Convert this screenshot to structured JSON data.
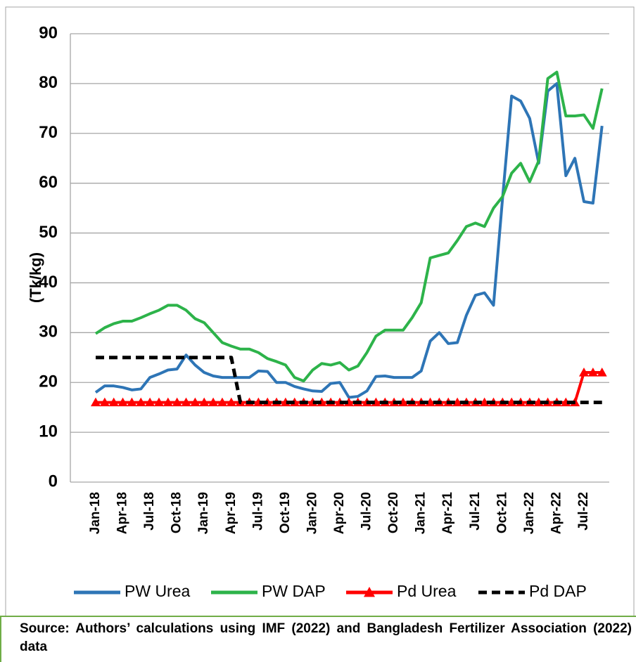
{
  "chart_data": {
    "type": "line",
    "y_label": "(Tk/kg)",
    "categories": [
      "Jan-18",
      null,
      null,
      "Apr-18",
      null,
      null,
      "Jul-18",
      null,
      null,
      "Oct-18",
      null,
      null,
      "Jan-19",
      null,
      null,
      "Apr-19",
      null,
      null,
      "Jul-19",
      null,
      null,
      "Oct-19",
      null,
      null,
      "Jan-20",
      null,
      null,
      "Apr-20",
      null,
      null,
      "Jul-20",
      null,
      null,
      "Oct-20",
      null,
      null,
      "Jan-21",
      null,
      null,
      "Apr-21",
      null,
      null,
      "Jul-21",
      null,
      null,
      "Oct-21",
      null,
      null,
      "Jan-22",
      null,
      null,
      "Apr-22",
      null,
      null,
      "Jul-22",
      null,
      null
    ],
    "series": [
      {
        "name": "PW Urea",
        "color": "#2e75b6",
        "dash": false,
        "marker": null,
        "values": [
          18,
          19.3,
          19.3,
          19,
          18.5,
          18.7,
          21,
          21.7,
          22.5,
          22.7,
          25.5,
          23.5,
          22,
          21.3,
          21,
          21,
          21,
          21,
          22.3,
          22.2,
          20,
          20,
          19.2,
          18.7,
          18.3,
          18.2,
          19.8,
          20,
          17,
          17.2,
          18.3,
          21.2,
          21.3,
          21,
          21,
          21,
          22.3,
          28.3,
          30,
          27.8,
          28,
          33.5,
          37.5,
          38,
          35.5,
          57,
          77.5,
          76.5,
          73,
          64,
          78.5,
          80,
          61.5,
          65,
          56.3,
          56,
          71.5
        ]
      },
      {
        "name": "PW DAP",
        "color": "#2db34a",
        "dash": false,
        "marker": null,
        "values": [
          29.8,
          31,
          31.8,
          32.3,
          32.3,
          33,
          33.8,
          34.5,
          35.5,
          35.5,
          34.5,
          32.8,
          32,
          30,
          28,
          27.3,
          26.7,
          26.7,
          26,
          24.8,
          24.2,
          23.5,
          21,
          20.3,
          22.5,
          23.8,
          23.5,
          24,
          22.5,
          23.3,
          26,
          29.3,
          30.5,
          30.5,
          30.5,
          33,
          36,
          45,
          45.5,
          46,
          48.5,
          51.3,
          52,
          51.3,
          55,
          57.3,
          62,
          64,
          60.3,
          64.5,
          81,
          82.3,
          73.5,
          73.5,
          73.7,
          71,
          79
        ]
      },
      {
        "name": "Pd Urea",
        "color": "#ff0000",
        "dash": false,
        "marker": "triangle",
        "values": [
          16,
          16,
          16,
          16,
          16,
          16,
          16,
          16,
          16,
          16,
          16,
          16,
          16,
          16,
          16,
          16,
          16,
          16,
          16,
          16,
          16,
          16,
          16,
          16,
          16,
          16,
          16,
          16,
          16,
          16,
          16,
          16,
          16,
          16,
          16,
          16,
          16,
          16,
          16,
          16,
          16,
          16,
          16,
          16,
          16,
          16,
          16,
          16,
          16,
          16,
          16,
          16,
          16,
          16,
          22,
          22,
          22
        ]
      },
      {
        "name": "Pd DAP",
        "color": "#000000",
        "dash": true,
        "marker": null,
        "values": [
          25,
          25,
          25,
          25,
          25,
          25,
          25,
          25,
          25,
          25,
          25,
          25,
          25,
          25,
          25,
          25,
          16,
          16,
          16,
          16,
          16,
          16,
          16,
          16,
          16,
          16,
          16,
          16,
          16,
          16,
          16,
          16,
          16,
          16,
          16,
          16,
          16,
          16,
          16,
          16,
          16,
          16,
          16,
          16,
          16,
          16,
          16,
          16,
          16,
          16,
          16,
          16,
          16,
          16,
          16,
          16,
          16
        ]
      }
    ],
    "ylim": [
      0,
      90
    ],
    "yticks": [
      0,
      10,
      20,
      30,
      40,
      50,
      60,
      70,
      80,
      90
    ],
    "grid": true,
    "legend": "bottom",
    "source": "Source: Authors’ calculations using IMF (2022) and Bangladesh Fertilizer Association (2022) data"
  }
}
